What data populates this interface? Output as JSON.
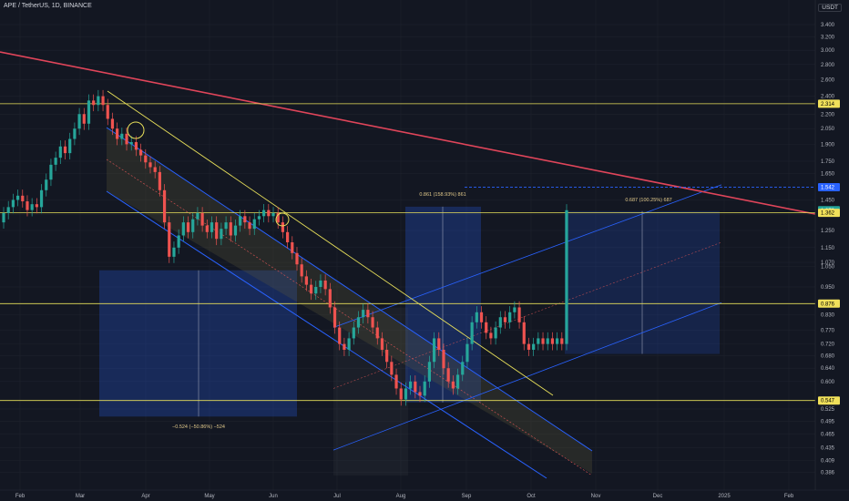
{
  "header": {
    "symbol_title": "APE / TetherUS, 1D, BINANCE",
    "currency": "USDT"
  },
  "chart_data": {
    "type": "candlestick",
    "y_scale": "log",
    "ylim": [
      0.38,
      3.6
    ],
    "y_ticks": [
      "3.400",
      "3.200",
      "3.000",
      "2.800",
      "2.600",
      "2.400",
      "2.200",
      "2.050",
      "1.900",
      "1.750",
      "1.650",
      "1.450",
      "1.350",
      "1.250",
      "1.150",
      "1.070",
      "1.050",
      "0.950",
      "0.830",
      "0.770",
      "0.720",
      "0.680",
      "0.640",
      "0.600",
      "0.525",
      "0.495",
      "0.465",
      "0.435",
      "0.409",
      "0.386"
    ],
    "x_ticks": [
      "Feb",
      "Mar",
      "Apr",
      "May",
      "Jun",
      "Jul",
      "Aug",
      "Sep",
      "Oct",
      "Nov",
      "Dec",
      "2025",
      "Feb"
    ],
    "price_tags": [
      {
        "label": "2.314",
        "value": 2.314,
        "color": "#f0e05a",
        "text_color": "#000000"
      },
      {
        "label": "1.542",
        "value": 1.542,
        "color": "#2962ff",
        "text_color": "#ffffff"
      },
      {
        "label": "1.379",
        "value": 1.379,
        "color": "#26a69a",
        "text_color": "#ffffff"
      },
      {
        "label": "1.362",
        "value": 1.362,
        "color": "#f0e05a",
        "text_color": "#000000"
      },
      {
        "label": "0.876",
        "value": 0.876,
        "color": "#f0e05a",
        "text_color": "#000000"
      },
      {
        "label": "0.547",
        "value": 0.547,
        "color": "#f0e05a",
        "text_color": "#000000"
      }
    ],
    "horizontal_levels": [
      2.314,
      1.362,
      0.876,
      0.547
    ],
    "measurements": [
      {
        "label": "−0.524 (−50.86%) −524",
        "from": 1.03,
        "to": 0.506
      },
      {
        "label": "0.861 (158.93%) 861",
        "from": 0.542,
        "to": 1.403
      },
      {
        "label": "0.687 (100.25%) 687",
        "from": 0.686,
        "to": 1.373
      }
    ],
    "candles": [
      [
        1.3,
        1.36
      ],
      [
        1.36,
        1.4
      ],
      [
        1.4,
        1.45
      ],
      [
        1.45,
        1.48
      ],
      [
        1.48,
        1.44
      ],
      [
        1.44,
        1.38
      ],
      [
        1.38,
        1.42
      ],
      [
        1.42,
        1.4
      ],
      [
        1.4,
        1.52
      ],
      [
        1.52,
        1.6
      ],
      [
        1.6,
        1.72
      ],
      [
        1.72,
        1.78
      ],
      [
        1.78,
        1.88
      ],
      [
        1.88,
        1.82
      ],
      [
        1.82,
        1.95
      ],
      [
        1.95,
        2.05
      ],
      [
        2.05,
        2.2
      ],
      [
        2.2,
        2.1
      ],
      [
        2.1,
        2.35
      ],
      [
        2.35,
        2.3
      ],
      [
        2.3,
        2.4
      ],
      [
        2.4,
        2.3
      ],
      [
        2.3,
        2.15
      ],
      [
        2.15,
        2.05
      ],
      [
        2.05,
        1.95
      ],
      [
        1.95,
        2.0
      ],
      [
        2.0,
        1.9
      ],
      [
        1.9,
        1.92
      ],
      [
        1.92,
        1.85
      ],
      [
        1.85,
        1.8
      ],
      [
        1.8,
        1.74
      ],
      [
        1.74,
        1.7
      ],
      [
        1.7,
        1.66
      ],
      [
        1.66,
        1.52
      ],
      [
        1.52,
        1.3
      ],
      [
        1.3,
        1.1
      ],
      [
        1.1,
        1.15
      ],
      [
        1.15,
        1.22
      ],
      [
        1.22,
        1.3
      ],
      [
        1.3,
        1.24
      ],
      [
        1.24,
        1.32
      ],
      [
        1.32,
        1.36
      ],
      [
        1.36,
        1.28
      ],
      [
        1.28,
        1.24
      ],
      [
        1.24,
        1.3
      ],
      [
        1.3,
        1.2
      ],
      [
        1.2,
        1.26
      ],
      [
        1.26,
        1.3
      ],
      [
        1.3,
        1.22
      ],
      [
        1.22,
        1.28
      ],
      [
        1.28,
        1.34
      ],
      [
        1.34,
        1.3
      ],
      [
        1.3,
        1.26
      ],
      [
        1.26,
        1.32
      ],
      [
        1.32,
        1.34
      ],
      [
        1.34,
        1.38
      ],
      [
        1.38,
        1.34
      ],
      [
        1.34,
        1.36
      ],
      [
        1.36,
        1.3
      ],
      [
        1.3,
        1.24
      ],
      [
        1.24,
        1.18
      ],
      [
        1.18,
        1.12
      ],
      [
        1.12,
        1.06
      ],
      [
        1.06,
        1.0
      ],
      [
        1.0,
        0.96
      ],
      [
        0.96,
        0.92
      ],
      [
        0.92,
        0.95
      ],
      [
        0.95,
        0.98
      ],
      [
        0.98,
        0.94
      ],
      [
        0.94,
        0.86
      ],
      [
        0.86,
        0.78
      ],
      [
        0.78,
        0.72
      ],
      [
        0.72,
        0.7
      ],
      [
        0.7,
        0.74
      ],
      [
        0.74,
        0.78
      ],
      [
        0.78,
        0.82
      ],
      [
        0.82,
        0.85
      ],
      [
        0.85,
        0.82
      ],
      [
        0.82,
        0.78
      ],
      [
        0.78,
        0.74
      ],
      [
        0.74,
        0.7
      ],
      [
        0.7,
        0.66
      ],
      [
        0.66,
        0.62
      ],
      [
        0.62,
        0.58
      ],
      [
        0.58,
        0.55
      ],
      [
        0.55,
        0.58
      ],
      [
        0.58,
        0.6
      ],
      [
        0.6,
        0.57
      ],
      [
        0.57,
        0.56
      ],
      [
        0.56,
        0.6
      ],
      [
        0.6,
        0.66
      ],
      [
        0.66,
        0.74
      ],
      [
        0.74,
        0.7
      ],
      [
        0.7,
        0.64
      ],
      [
        0.64,
        0.6
      ],
      [
        0.6,
        0.58
      ],
      [
        0.58,
        0.62
      ],
      [
        0.62,
        0.66
      ],
      [
        0.66,
        0.72
      ],
      [
        0.72,
        0.8
      ],
      [
        0.8,
        0.84
      ],
      [
        0.84,
        0.8
      ],
      [
        0.8,
        0.76
      ],
      [
        0.76,
        0.74
      ],
      [
        0.74,
        0.78
      ],
      [
        0.78,
        0.82
      ],
      [
        0.82,
        0.8
      ],
      [
        0.8,
        0.84
      ],
      [
        0.84,
        0.86
      ],
      [
        0.86,
        0.8
      ],
      [
        0.8,
        0.72
      ],
      [
        0.72,
        0.7
      ],
      [
        0.7,
        0.72
      ],
      [
        0.72,
        0.74
      ],
      [
        0.74,
        0.72
      ],
      [
        0.72,
        0.74
      ],
      [
        0.74,
        0.72
      ],
      [
        0.72,
        0.74
      ],
      [
        0.74,
        0.72
      ],
      [
        0.72,
        1.379
      ]
    ]
  }
}
